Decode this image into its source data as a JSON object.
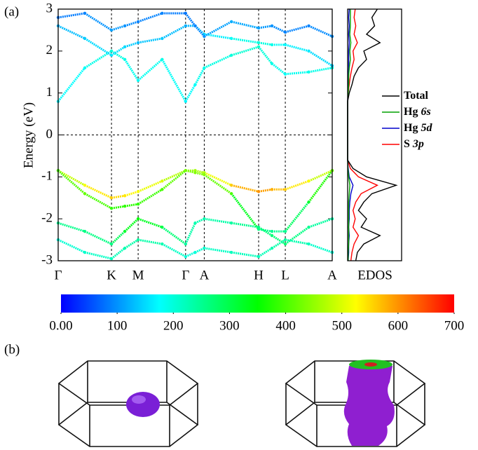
{
  "panel_labels": [
    "(a)",
    "(b)"
  ],
  "chart_data": [
    {
      "type": "band",
      "ylabel": "Energy (eV)",
      "xlim": [
        0,
        5.14
      ],
      "ylim": [
        -3,
        3
      ],
      "yticks": [
        -3,
        -2,
        -1,
        0,
        1,
        2,
        3
      ],
      "xticks": [
        {
          "value": 0,
          "label": "Γ"
        },
        {
          "value": 1,
          "label": "K"
        },
        {
          "value": 1.5,
          "label": "M"
        },
        {
          "value": 2.39,
          "label": "Γ"
        },
        {
          "value": 2.74,
          "label": "A"
        },
        {
          "value": 3.76,
          "label": "H"
        },
        {
          "value": 4.26,
          "label": "L"
        },
        {
          "value": 5.14,
          "label": "A"
        }
      ],
      "hline": 0,
      "x": [
        0,
        0.5,
        1,
        1.25,
        1.5,
        1.95,
        2.39,
        2.57,
        2.74,
        3.25,
        3.76,
        4.01,
        4.26,
        4.7,
        5.14
      ],
      "series": [
        {
          "values": [
            0.8,
            1.6,
            2.0,
            1.8,
            1.3,
            1.8,
            0.8,
            1.2,
            1.6,
            1.9,
            2.1,
            1.7,
            1.45,
            1.5,
            1.6
          ],
          "weights": [
            170,
            180,
            200,
            190,
            180,
            190,
            170,
            180,
            190,
            200,
            210,
            190,
            180,
            190,
            190
          ]
        },
        {
          "values": [
            2.6,
            2.3,
            1.9,
            2.1,
            2.2,
            2.3,
            2.6,
            2.6,
            2.4,
            2.3,
            2.2,
            2.15,
            2.15,
            2.0,
            1.65
          ],
          "weights": [
            120,
            140,
            160,
            150,
            130,
            140,
            120,
            130,
            150,
            180,
            200,
            190,
            170,
            160,
            140
          ]
        },
        {
          "values": [
            2.8,
            2.9,
            2.5,
            2.6,
            2.7,
            2.9,
            2.9,
            2.6,
            2.35,
            2.7,
            2.55,
            2.6,
            2.45,
            2.6,
            2.35
          ],
          "weights": [
            80,
            90,
            110,
            100,
            90,
            90,
            80,
            90,
            100,
            120,
            110,
            100,
            90,
            90,
            100
          ]
        },
        {
          "values": [
            -0.85,
            -1.2,
            -1.5,
            -1.45,
            -1.35,
            -1.1,
            -0.85,
            -0.85,
            -0.9,
            -1.2,
            -1.35,
            -1.3,
            -1.3,
            -1.1,
            -0.85
          ],
          "weights": [
            450,
            520,
            560,
            540,
            520,
            500,
            450,
            460,
            470,
            560,
            600,
            580,
            560,
            520,
            450
          ]
        },
        {
          "values": [
            -0.85,
            -1.4,
            -1.75,
            -1.7,
            -1.65,
            -1.3,
            -0.85,
            -0.9,
            -0.95,
            -1.4,
            -2.25,
            -2.3,
            -2.3,
            -1.6,
            -0.85
          ],
          "weights": [
            400,
            420,
            380,
            380,
            380,
            400,
            430,
            440,
            440,
            400,
            260,
            250,
            250,
            320,
            420
          ]
        },
        {
          "values": [
            -2.1,
            -2.3,
            -2.6,
            -2.3,
            -2.0,
            -2.2,
            -2.6,
            -2.1,
            -2.0,
            -2.1,
            -2.2,
            -2.4,
            -2.6,
            -2.2,
            -2.0
          ],
          "weights": [
            250,
            260,
            260,
            320,
            350,
            300,
            240,
            230,
            230,
            240,
            260,
            270,
            270,
            250,
            230
          ]
        },
        {
          "values": [
            -2.5,
            -2.8,
            -2.95,
            -2.7,
            -2.5,
            -2.6,
            -2.9,
            -2.8,
            -2.7,
            -2.8,
            -2.9,
            -2.7,
            -2.5,
            -2.6,
            -2.8
          ],
          "weights": [
            200,
            210,
            220,
            230,
            240,
            230,
            200,
            200,
            210,
            220,
            220,
            230,
            240,
            220,
            200
          ]
        }
      ],
      "colormap": [
        "#0000ff",
        "#00ffff",
        "#00ff00",
        "#ffff00",
        "#ff0000"
      ],
      "clim": [
        0,
        700
      ]
    },
    {
      "type": "dos",
      "xlabel": "EDOS",
      "xlim": [
        -3,
        3
      ],
      "ylim": [
        0,
        1
      ],
      "legend": "right",
      "x": [
        -3,
        -2.8,
        -2.6,
        -2.4,
        -2.2,
        -2,
        -1.8,
        -1.6,
        -1.4,
        -1.2,
        -1,
        -0.8,
        -0.6,
        -0.4,
        -0.2,
        0,
        0.2,
        0.4,
        0.6,
        0.8,
        1,
        1.2,
        1.4,
        1.6,
        1.8,
        2,
        2.2,
        2.4,
        2.6,
        2.8,
        3
      ],
      "series": [
        {
          "name": "Total",
          "color": "#000000",
          "values": [
            0.15,
            0.18,
            0.3,
            0.6,
            0.25,
            0.35,
            0.2,
            0.3,
            0.45,
            0.9,
            0.35,
            0.1,
            0,
            0,
            0,
            0,
            0,
            0,
            0,
            0,
            0.03,
            0.08,
            0.12,
            0.2,
            0.35,
            0.3,
            0.6,
            0.35,
            0.5,
            0.45,
            0.55
          ]
        },
        {
          "name": "Hg 6s",
          "color": "#00a000",
          "values": [
            0.01,
            0.01,
            0.02,
            0.02,
            0.02,
            0.02,
            0.02,
            0.02,
            0.03,
            0.04,
            0.02,
            0.005,
            0,
            0,
            0,
            0,
            0,
            0,
            0,
            0,
            0.01,
            0.02,
            0.02,
            0.03,
            0.05,
            0.04,
            0.06,
            0.04,
            0.05,
            0.05,
            0.05
          ]
        },
        {
          "name": "Hg 5d",
          "color": "#0000cc",
          "values": [
            0.01,
            0.02,
            0.02,
            0.03,
            0.02,
            0.03,
            0.03,
            0.04,
            0.06,
            0.1,
            0.03,
            0.01,
            0,
            0,
            0,
            0,
            0,
            0,
            0,
            0,
            0.005,
            0.01,
            0.01,
            0.02,
            0.02,
            0.02,
            0.03,
            0.02,
            0.03,
            0.02,
            0.03
          ]
        },
        {
          "name": "S 3p",
          "color": "#ff0000",
          "values": [
            0.06,
            0.08,
            0.12,
            0.2,
            0.1,
            0.14,
            0.1,
            0.15,
            0.25,
            0.55,
            0.2,
            0.05,
            0,
            0,
            0,
            0,
            0,
            0,
            0,
            0,
            0.01,
            0.03,
            0.05,
            0.08,
            0.12,
            0.1,
            0.18,
            0.12,
            0.15,
            0.12,
            0.14
          ]
        }
      ]
    },
    {
      "type": "colorbar",
      "xlim": [
        0,
        700
      ],
      "xticks": [
        {
          "value": 0,
          "label": "0.00"
        },
        100,
        200,
        300,
        400,
        500,
        600,
        700
      ],
      "colormap": [
        "#0000ff",
        "#00ffff",
        "#00ff00",
        "#ffff00",
        "#ff0000"
      ]
    }
  ]
}
